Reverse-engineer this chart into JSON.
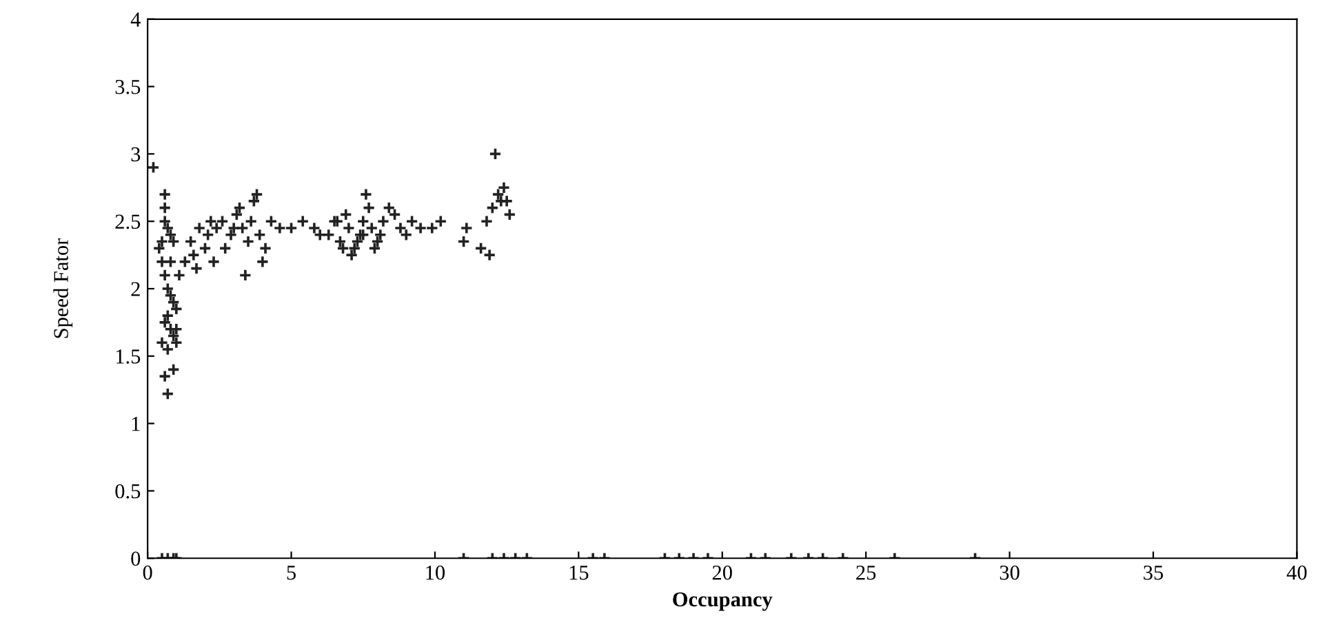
{
  "chart_data": {
    "type": "scatter",
    "xlabel": "Occupancy",
    "ylabel": "Speed Fator",
    "xlim": [
      0,
      40
    ],
    "ylim": [
      0,
      4
    ],
    "xticks": [
      0,
      5,
      10,
      15,
      20,
      25,
      30,
      35,
      40
    ],
    "yticks": [
      0,
      0.5,
      1,
      1.5,
      2,
      2.5,
      3,
      3.5,
      4
    ],
    "grid": false,
    "marker": "cross",
    "series": [
      {
        "color": "#222222",
        "x": [
          0.2,
          0.6,
          0.6,
          0.6,
          0.7,
          0.5,
          0.4,
          0.5,
          0.8,
          0.9,
          0.6,
          0.7,
          0.8,
          0.9,
          1.0,
          0.7,
          0.8,
          0.9,
          0.6,
          0.5,
          0.7,
          1.0,
          1.0,
          0.8,
          0.6,
          0.7,
          0.9,
          1.1,
          1.3,
          1.5,
          1.6,
          1.8,
          1.7,
          2.0,
          2.1,
          2.2,
          2.4,
          2.6,
          2.3,
          2.7,
          2.9,
          3.1,
          3.2,
          3.3,
          3.5,
          3.6,
          3.7,
          3.8,
          3.9,
          4.1,
          4.3,
          4.0,
          3.4,
          3.0,
          4.6,
          5.0,
          5.4,
          5.8,
          6.0,
          6.3,
          6.5,
          6.7,
          6.9,
          7.0,
          7.2,
          7.4,
          7.5,
          7.7,
          7.8,
          8.0,
          8.2,
          8.4,
          8.6,
          8.8,
          9.0,
          9.2,
          9.5,
          9.9,
          10.2,
          7.3,
          7.1,
          6.8,
          7.6,
          8.1,
          7.9,
          6.6,
          7.5,
          11.0,
          11.1,
          11.6,
          11.8,
          12.0,
          12.2,
          12.3,
          12.5,
          12.6,
          12.1,
          11.9,
          12.4,
          0.5,
          0.7,
          0.9,
          1.0,
          11.0,
          12.0,
          12.4,
          12.8,
          13.2,
          15.5,
          15.9,
          18.0,
          18.5,
          19.0,
          19.5,
          21.0,
          21.5,
          22.4,
          23.0,
          23.5,
          24.2,
          26.0,
          28.8
        ],
        "values": [
          2.9,
          2.7,
          2.6,
          2.5,
          2.45,
          2.35,
          2.3,
          2.2,
          2.4,
          2.35,
          2.1,
          2.0,
          1.95,
          1.9,
          1.85,
          1.8,
          1.7,
          1.65,
          1.75,
          1.6,
          1.55,
          1.6,
          1.7,
          2.2,
          1.35,
          1.22,
          1.4,
          2.1,
          2.2,
          2.35,
          2.25,
          2.45,
          2.15,
          2.3,
          2.4,
          2.5,
          2.45,
          2.5,
          2.2,
          2.3,
          2.4,
          2.55,
          2.6,
          2.45,
          2.35,
          2.5,
          2.65,
          2.7,
          2.4,
          2.3,
          2.5,
          2.2,
          2.1,
          2.45,
          2.45,
          2.45,
          2.5,
          2.45,
          2.4,
          2.4,
          2.5,
          2.35,
          2.55,
          2.45,
          2.3,
          2.4,
          2.5,
          2.6,
          2.45,
          2.35,
          2.5,
          2.6,
          2.55,
          2.45,
          2.4,
          2.5,
          2.45,
          2.45,
          2.5,
          2.35,
          2.25,
          2.3,
          2.7,
          2.4,
          2.3,
          2.5,
          2.4,
          2.35,
          2.45,
          2.3,
          2.5,
          2.6,
          2.7,
          2.65,
          2.65,
          2.55,
          3.0,
          2.25,
          2.75,
          0,
          0,
          0,
          0,
          0,
          0,
          0,
          0,
          0,
          0,
          0,
          0,
          0,
          0,
          0,
          0,
          0,
          0,
          0,
          0,
          0,
          0,
          0
        ]
      }
    ]
  }
}
